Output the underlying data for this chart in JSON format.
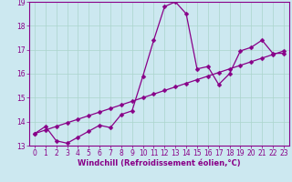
{
  "xlabel": "Windchill (Refroidissement éolien,°C)",
  "background_color": "#cce8f0",
  "grid_color": "#aad4cc",
  "line_color": "#880088",
  "xlim": [
    -0.5,
    23.5
  ],
  "ylim": [
    13.0,
    19.0
  ],
  "xticks": [
    0,
    1,
    2,
    3,
    4,
    5,
    6,
    7,
    8,
    9,
    10,
    11,
    12,
    13,
    14,
    15,
    16,
    17,
    18,
    19,
    20,
    21,
    22,
    23
  ],
  "yticks": [
    13,
    14,
    15,
    16,
    17,
    18,
    19
  ],
  "line1_x": [
    0,
    1,
    2,
    3,
    4,
    5,
    6,
    7,
    8,
    9,
    10,
    11,
    12,
    13,
    14,
    15,
    16,
    17,
    18,
    19,
    20,
    21,
    22,
    23
  ],
  "line1_y": [
    13.5,
    13.8,
    13.2,
    13.1,
    13.35,
    13.6,
    13.85,
    13.75,
    14.3,
    14.45,
    15.9,
    17.4,
    18.8,
    19.0,
    18.5,
    16.2,
    16.3,
    15.55,
    16.0,
    16.95,
    17.1,
    17.4,
    16.85,
    16.85
  ],
  "line2_x": [
    0,
    1,
    2,
    3,
    4,
    5,
    6,
    7,
    8,
    9,
    10,
    11,
    12,
    13,
    14,
    15,
    16,
    17,
    18,
    19,
    20,
    21,
    22,
    23
  ],
  "line2_y": [
    13.5,
    13.65,
    13.8,
    13.95,
    14.1,
    14.25,
    14.4,
    14.55,
    14.7,
    14.85,
    15.0,
    15.15,
    15.3,
    15.45,
    15.6,
    15.75,
    15.9,
    16.05,
    16.2,
    16.35,
    16.5,
    16.65,
    16.8,
    16.95
  ],
  "marker": "D",
  "markersize": 2.5,
  "linewidth": 0.9,
  "tick_fontsize": 5.5,
  "label_fontsize": 6.0
}
